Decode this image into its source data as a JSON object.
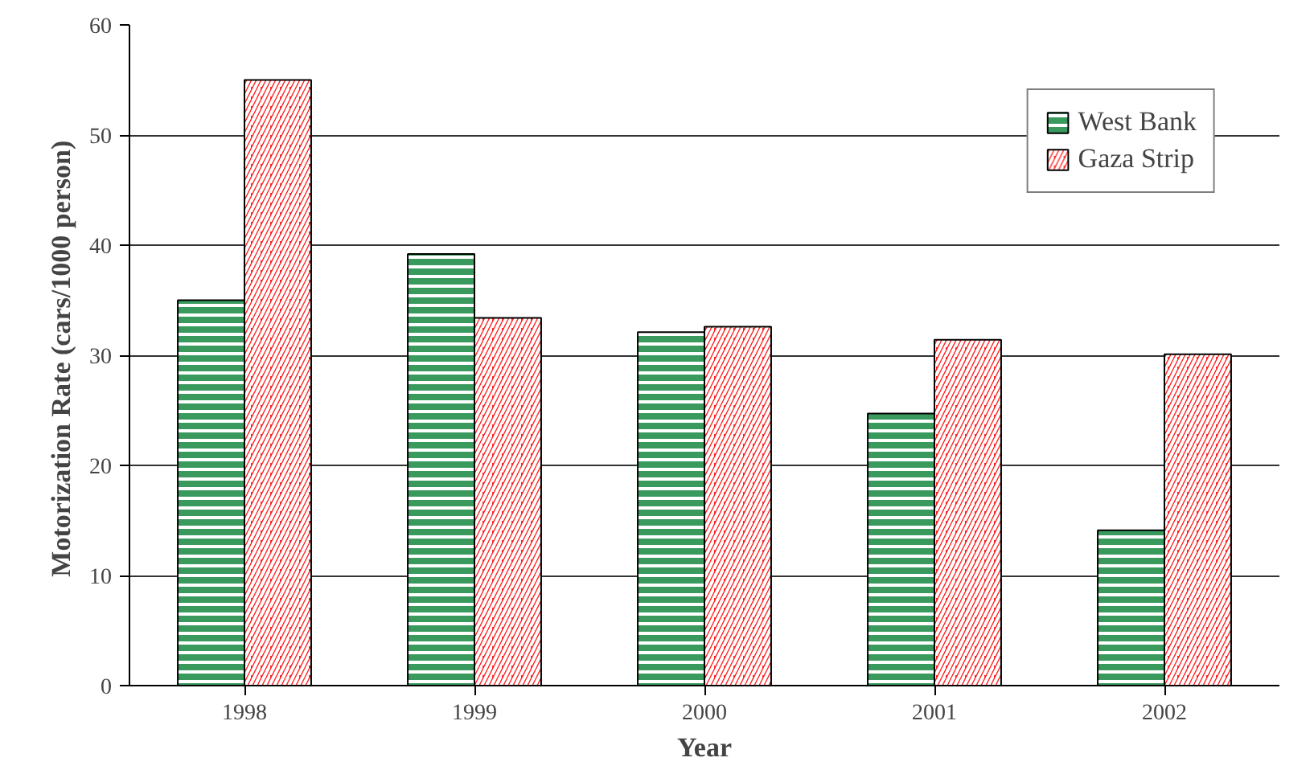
{
  "chart_data": {
    "type": "bar",
    "xlabel": "Year",
    "ylabel": "Motorization Rate  (cars/1000 person)",
    "categories": [
      "1998",
      "1999",
      "2000",
      "2001",
      "2002"
    ],
    "series": [
      {
        "name": "West Bank",
        "color": "#3a9a5e",
        "values": [
          35.0,
          39.2,
          32.1,
          24.7,
          14.1
        ]
      },
      {
        "name": "Gaza Strip",
        "color": "#ff2020",
        "values": [
          55.0,
          33.4,
          32.6,
          31.4,
          30.1
        ]
      }
    ],
    "ylim": [
      0,
      60
    ],
    "yticks": [
      0,
      10,
      20,
      30,
      40,
      50,
      60
    ],
    "grid": "y",
    "legend": "top right"
  }
}
